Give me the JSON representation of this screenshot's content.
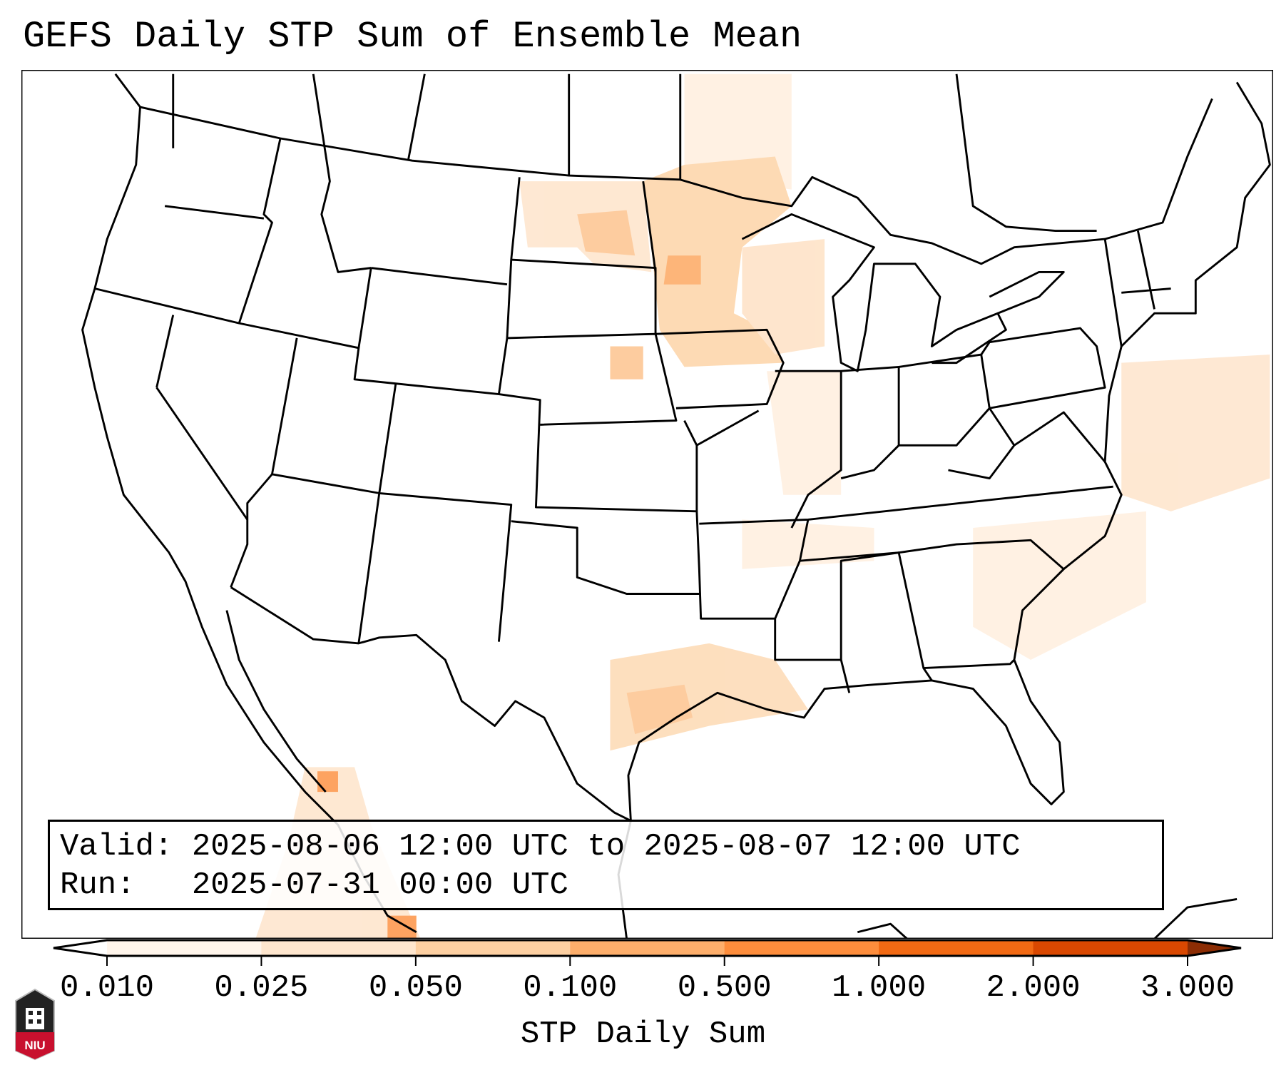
{
  "title": "GEFS Daily STP Sum of Ensemble Mean",
  "info": {
    "valid_label": "Valid:",
    "valid_value": "2025-08-06 12:00 UTC to 2025-08-07 12:00 UTC",
    "run_label": "Run:",
    "run_value": "2025-07-31 00:00 UTC"
  },
  "colorbar": {
    "label": "STP Daily Sum",
    "ticks": [
      "0.010",
      "0.025",
      "0.050",
      "0.100",
      "0.500",
      "1.000",
      "2.000",
      "3.000"
    ],
    "colors": [
      "#fff5eb",
      "#fee6ce",
      "#fdd0a2",
      "#fdae6b",
      "#fd8d3c",
      "#f16913",
      "#d94801",
      "#8c2d04"
    ],
    "under_color": "#ffffff"
  },
  "logo": {
    "text": "NIU"
  }
}
